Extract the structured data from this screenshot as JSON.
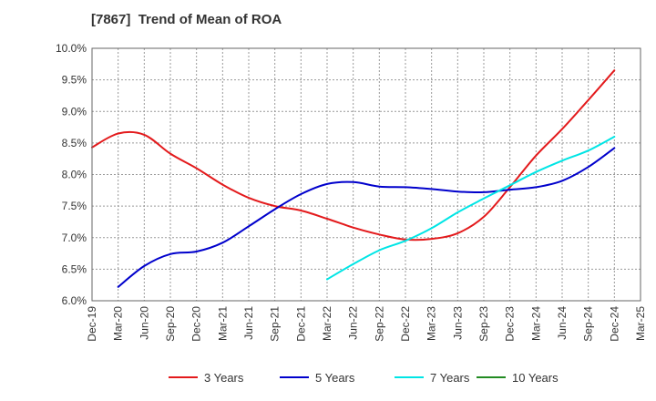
{
  "chart_data": {
    "type": "line",
    "title": "[7867]  Trend of Mean of ROA",
    "x_labels": [
      "Dec-19",
      "Mar-20",
      "Jun-20",
      "Sep-20",
      "Dec-20",
      "Mar-21",
      "Jun-21",
      "Sep-21",
      "Dec-21",
      "Mar-22",
      "Jun-22",
      "Sep-22",
      "Dec-22",
      "Mar-23",
      "Jun-23",
      "Sep-23",
      "Dec-23",
      "Mar-24",
      "Jun-24",
      "Sep-24",
      "Dec-24",
      "Mar-25"
    ],
    "y_ticks": [
      "10.0%",
      "9.5%",
      "9.0%",
      "8.5%",
      "8.0%",
      "7.5%",
      "7.0%",
      "6.5%",
      "6.0%"
    ],
    "ylim": [
      6.0,
      10.0
    ],
    "grid": true,
    "legend_position": "bottom",
    "series": [
      {
        "name": "3 Years",
        "color": "#e31a1c",
        "values": [
          8.43,
          8.65,
          8.63,
          8.33,
          8.1,
          7.84,
          7.63,
          7.5,
          7.43,
          7.3,
          7.16,
          7.05,
          6.97,
          6.98,
          7.07,
          7.33,
          7.8,
          8.3,
          8.72,
          9.18,
          9.65,
          null
        ]
      },
      {
        "name": "5 Years",
        "color": "#0000cc",
        "values": [
          null,
          6.22,
          6.55,
          6.74,
          6.78,
          6.92,
          7.18,
          7.45,
          7.69,
          7.85,
          7.88,
          7.81,
          7.8,
          7.77,
          7.73,
          7.72,
          7.76,
          7.8,
          7.9,
          8.12,
          8.42,
          null
        ]
      },
      {
        "name": "7 Years",
        "color": "#00e5e5",
        "values": [
          null,
          null,
          null,
          null,
          null,
          null,
          null,
          null,
          null,
          6.34,
          6.58,
          6.8,
          6.95,
          7.15,
          7.4,
          7.62,
          7.83,
          8.04,
          8.22,
          8.38,
          8.6,
          null
        ]
      },
      {
        "name": "10 Years",
        "color": "#228b22",
        "values": [
          null,
          null,
          null,
          null,
          null,
          null,
          null,
          null,
          null,
          null,
          null,
          null,
          null,
          null,
          null,
          null,
          null,
          null,
          null,
          null,
          null,
          null
        ]
      }
    ]
  }
}
